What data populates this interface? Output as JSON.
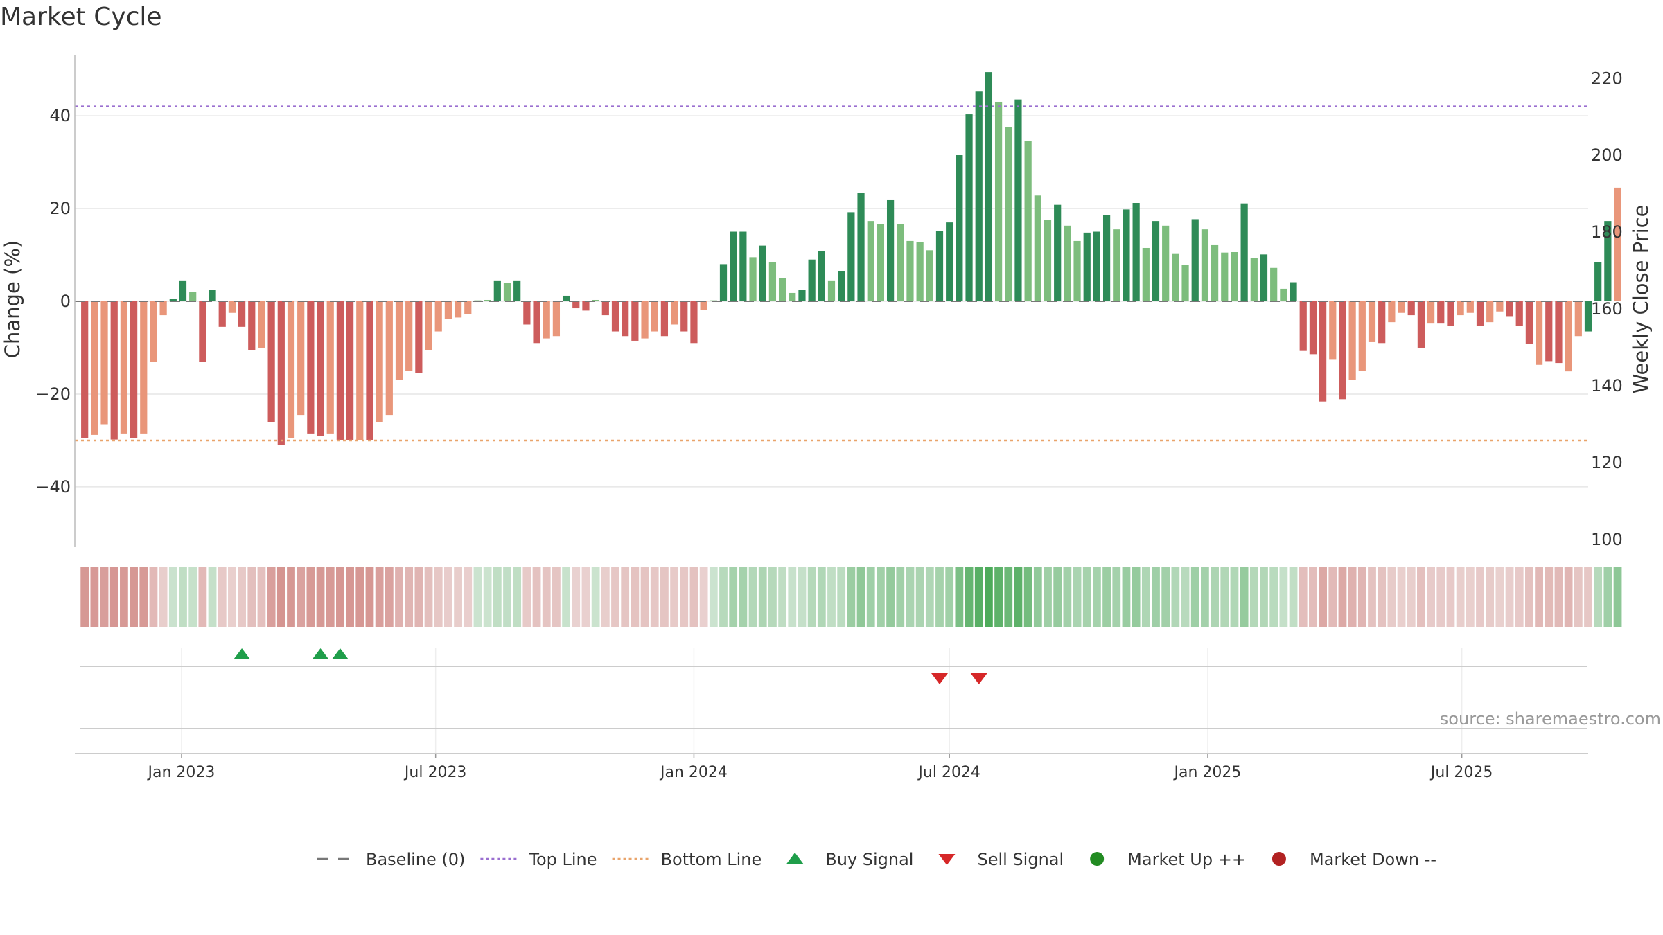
{
  "title": "Market Cycle",
  "source_text": "source: sharemaestro.com",
  "colors": {
    "strong_up": "#2e8b57",
    "up": "#7dbd7d",
    "strong_down": "#cd5c5c",
    "down": "#e9967a",
    "top_line": "#9a6fd0",
    "bottom_line": "#e9a46b",
    "baseline": "#777777",
    "buy": "#1f9e4a",
    "sell": "#d62728",
    "market_up": "#228b22",
    "market_down": "#b22222"
  },
  "chart_data": {
    "type": "bar",
    "ylabel": "Change (%)",
    "y2label": "Weekly Close Price",
    "ylim": [
      -53,
      53
    ],
    "y2lim": [
      98,
      226
    ],
    "yticks": [
      -40,
      -20,
      0,
      20,
      40
    ],
    "yticklabels": [
      "−40",
      "−20",
      "0",
      "20",
      "40"
    ],
    "y2ticks": [
      100,
      120,
      140,
      160,
      180,
      200,
      220
    ],
    "top_line": 42,
    "bottom_line": -30,
    "xlim": [
      "2022-10-17",
      "2025-09-29"
    ],
    "xticks": [
      "2023-01-01",
      "2023-07-01",
      "2024-01-01",
      "2024-07-01",
      "2025-01-01",
      "2025-07-01"
    ],
    "xticklabels": [
      "Jan 2023",
      "Jul 2023",
      "Jan 2024",
      "Jul 2024",
      "Jan 2025",
      "Jul 2025"
    ],
    "start_week": "2022-10-24",
    "week_step_days": 7,
    "values": [
      -29.5,
      -28.8,
      -26.5,
      -29.8,
      -28.5,
      -29.5,
      -28.5,
      -13,
      -3,
      0.5,
      4.5,
      2,
      -13,
      2.5,
      -5.5,
      -2.5,
      -5.5,
      -10.5,
      -10,
      -26,
      -31,
      -29.5,
      -24.5,
      -28.5,
      -29,
      -28.5,
      -30,
      -30,
      -30,
      -30,
      -26,
      -24.5,
      -17,
      -15,
      -15.5,
      -10.5,
      -6.5,
      -3.8,
      -3.5,
      -2.8,
      0.2,
      0.3,
      4.5,
      4,
      4.5,
      -5,
      -9,
      -8,
      -7.5,
      1.2,
      -1.5,
      -2,
      0.3,
      -3,
      -6.5,
      -7.5,
      -8.5,
      -8,
      -6.5,
      -7.5,
      -5,
      -6.5,
      -9,
      -1.8,
      0.2,
      8,
      15,
      15,
      9.5,
      12,
      8.5,
      5,
      1.8,
      2.5,
      9,
      10.8,
      4.5,
      6.5,
      19.2,
      23.3,
      17.3,
      16.7,
      21.8,
      16.7,
      13,
      12.8,
      11,
      15.2,
      17,
      31.5,
      40.3,
      45.2,
      49.4,
      43,
      37.5,
      43.5,
      34.5,
      22.8,
      17.5,
      20.8,
      16.3,
      13,
      14.8,
      15,
      18.6,
      15.5,
      19.8,
      21.2,
      11.5,
      17.3,
      16.3,
      10.2,
      7.8,
      17.7,
      15.5,
      12.1,
      10.5,
      10.6,
      21.1,
      9.4,
      10.1,
      7.2,
      2.7,
      4.1,
      -10.7,
      -11.4,
      -21.6,
      -12.6,
      -21.1,
      -17,
      -15,
      -8.8,
      -9,
      -4.5,
      -2.5,
      -3,
      -10,
      -4.8,
      -4.8,
      -5.3,
      -3,
      -2.5,
      -5.3,
      -4.5,
      -2.2,
      -3.2,
      -5.3,
      -9.2,
      -13.7,
      -12.9,
      -13.3,
      -15.1,
      -7.5,
      -6.5,
      8.5,
      17.3,
      24.5
    ],
    "categories_rule": "dark green = strong up, light green = up, dark red = strong down, light orange = down",
    "bar_categories": [
      "sd",
      "d",
      "d",
      "sd",
      "d",
      "sd",
      "d",
      "d",
      "d",
      "su",
      "su",
      "u",
      "sd",
      "su",
      "sd",
      "d",
      "sd",
      "sd",
      "d",
      "sd",
      "sd",
      "d",
      "d",
      "sd",
      "sd",
      "d",
      "sd",
      "sd",
      "d",
      "sd",
      "d",
      "d",
      "d",
      "d",
      "sd",
      "d",
      "d",
      "d",
      "d",
      "d",
      "u",
      "u",
      "su",
      "u",
      "su",
      "sd",
      "sd",
      "d",
      "d",
      "su",
      "sd",
      "sd",
      "u",
      "sd",
      "sd",
      "sd",
      "sd",
      "d",
      "d",
      "sd",
      "d",
      "sd",
      "sd",
      "d",
      "u",
      "su",
      "su",
      "su",
      "u",
      "su",
      "u",
      "u",
      "u",
      "su",
      "su",
      "su",
      "u",
      "su",
      "su",
      "su",
      "u",
      "u",
      "su",
      "u",
      "u",
      "u",
      "u",
      "su",
      "su",
      "su",
      "su",
      "su",
      "su",
      "u",
      "u",
      "su",
      "u",
      "u",
      "u",
      "su",
      "u",
      "u",
      "su",
      "su",
      "su",
      "u",
      "su",
      "su",
      "u",
      "su",
      "u",
      "u",
      "u",
      "su",
      "u",
      "u",
      "u",
      "u",
      "su",
      "u",
      "su",
      "u",
      "u",
      "su",
      "sd",
      "sd",
      "sd",
      "d",
      "sd",
      "d",
      "d",
      "d",
      "sd",
      "d",
      "d",
      "sd",
      "sd",
      "d",
      "sd",
      "sd",
      "d",
      "d",
      "sd",
      "d",
      "d",
      "sd",
      "sd",
      "sd",
      "d",
      "sd",
      "sd",
      "d",
      "d",
      "su",
      "su",
      "su"
    ],
    "buy_signals": [
      "2023-02-13",
      "2023-04-10",
      "2023-04-24"
    ],
    "sell_signals": [
      "2024-06-24",
      "2024-07-22"
    ],
    "legend": [
      {
        "label": "Baseline (0)",
        "marker": "dash-gray"
      },
      {
        "label": "Top Line",
        "marker": "dotted-purple"
      },
      {
        "label": "Bottom Line",
        "marker": "dotted-orange"
      },
      {
        "label": "Buy Signal",
        "marker": "triangle-up-green"
      },
      {
        "label": "Sell Signal",
        "marker": "triangle-down-red"
      },
      {
        "label": "Market Up ++",
        "marker": "circle-green"
      },
      {
        "label": "Market Down --",
        "marker": "circle-red"
      }
    ],
    "legend_position": "bottom-center",
    "grid": true
  }
}
